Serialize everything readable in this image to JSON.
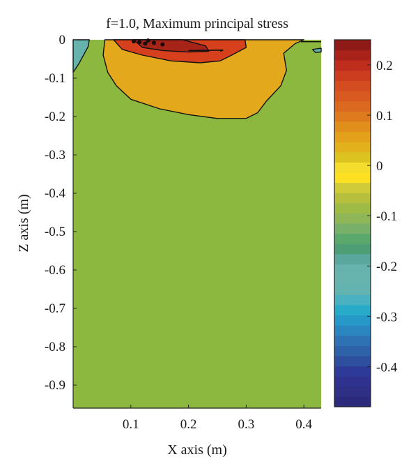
{
  "chart_data": {
    "type": "heatmap",
    "title": "f=1.0, Maximum principal stress",
    "xlabel": "X axis (m)",
    "ylabel": "Z axis (m)",
    "xlim": [
      0,
      0.43
    ],
    "ylim": [
      -0.96,
      0
    ],
    "x_ticks": [
      {
        "value": 0.1,
        "label": "0.1"
      },
      {
        "value": 0.2,
        "label": "0.2"
      },
      {
        "value": 0.3,
        "label": "0.3"
      },
      {
        "value": 0.4,
        "label": "0.4"
      }
    ],
    "y_ticks": [
      {
        "value": 0,
        "label": "0"
      },
      {
        "value": -0.1,
        "label": "-0.1"
      },
      {
        "value": -0.2,
        "label": "-0.2"
      },
      {
        "value": -0.3,
        "label": "-0.3"
      },
      {
        "value": -0.4,
        "label": "-0.4"
      },
      {
        "value": -0.5,
        "label": "-0.5"
      },
      {
        "value": -0.6,
        "label": "-0.6"
      },
      {
        "value": -0.7,
        "label": "-0.7"
      },
      {
        "value": -0.8,
        "label": "-0.8"
      },
      {
        "value": -0.9,
        "label": "-0.9"
      }
    ],
    "background_level": -0.075,
    "contour_regions": [
      {
        "level": -0.2,
        "color": "#66b3ad",
        "points": [
          [
            0,
            -0.0
          ],
          [
            0.028,
            0
          ],
          [
            0.026,
            -0.018
          ],
          [
            0.01,
            -0.062
          ],
          [
            0,
            -0.085
          ]
        ]
      },
      {
        "level": 0.05,
        "color": "#e4a81d",
        "points": [
          [
            0.055,
            0
          ],
          [
            0.052,
            -0.04
          ],
          [
            0.06,
            -0.085
          ],
          [
            0.075,
            -0.12
          ],
          [
            0.1,
            -0.155
          ],
          [
            0.15,
            -0.18
          ],
          [
            0.2,
            -0.195
          ],
          [
            0.25,
            -0.205
          ],
          [
            0.3,
            -0.205
          ],
          [
            0.32,
            -0.19
          ],
          [
            0.335,
            -0.16
          ],
          [
            0.36,
            -0.12
          ],
          [
            0.37,
            -0.08
          ],
          [
            0.365,
            -0.035
          ],
          [
            0.385,
            -0.01
          ],
          [
            0.4,
            0
          ]
        ]
      },
      {
        "level": 0.175,
        "color": "#d7401c",
        "points": [
          [
            0.07,
            0
          ],
          [
            0.085,
            -0.025
          ],
          [
            0.12,
            -0.04
          ],
          [
            0.17,
            -0.055
          ],
          [
            0.22,
            -0.06
          ],
          [
            0.255,
            -0.055
          ],
          [
            0.275,
            -0.04
          ],
          [
            0.3,
            -0.02
          ],
          [
            0.298,
            0
          ]
        ]
      },
      {
        "level": 0.225,
        "color": "#a62317",
        "points": [
          [
            0.105,
            0
          ],
          [
            0.12,
            -0.02
          ],
          [
            0.155,
            -0.028
          ],
          [
            0.2,
            -0.032
          ],
          [
            0.235,
            -0.03
          ],
          [
            0.23,
            -0.016
          ],
          [
            0.205,
            -0.006
          ],
          [
            0.19,
            0
          ]
        ]
      },
      {
        "level": -0.2,
        "color": "#66b3ad",
        "points": [
          [
            0.415,
            -0.025
          ],
          [
            0.43,
            -0.022
          ],
          [
            0.43,
            -0.032
          ],
          [
            0.42,
            -0.033
          ]
        ]
      }
    ],
    "colorbar": {
      "range": [
        -0.48,
        0.25
      ],
      "ticks": [
        {
          "value": 0.2,
          "label": "0.2"
        },
        {
          "value": 0.1,
          "label": "0.1"
        },
        {
          "value": 0,
          "label": "0"
        },
        {
          "value": -0.1,
          "label": "-0.1"
        },
        {
          "value": -0.2,
          "label": "-0.2"
        },
        {
          "value": -0.3,
          "label": "-0.3"
        },
        {
          "value": -0.4,
          "label": "-0.4"
        }
      ],
      "colors": [
        "#2c2a7d",
        "#2f2f86",
        "#2f338f",
        "#2e3a97",
        "#2d4f9e",
        "#2d61a8",
        "#2f72b4",
        "#2b86c0",
        "#2799c9",
        "#28aac9",
        "#49b1c0",
        "#63b3b1",
        "#66b4ad",
        "#66b3ad",
        "#5aa89d",
        "#4e9e75",
        "#5aa86c",
        "#78b06a",
        "#8fb657",
        "#9ebb45",
        "#b7c03d",
        "#d0cb39",
        "#fde021",
        "#f4dd2c",
        "#dcc31f",
        "#e2b11c",
        "#e3a01a",
        "#e08e1c",
        "#dd7b1e",
        "#db6a20",
        "#d85a20",
        "#d44d20",
        "#cc3d1f",
        "#bf2d1c",
        "#a82219",
        "#8e1a17"
      ]
    }
  }
}
